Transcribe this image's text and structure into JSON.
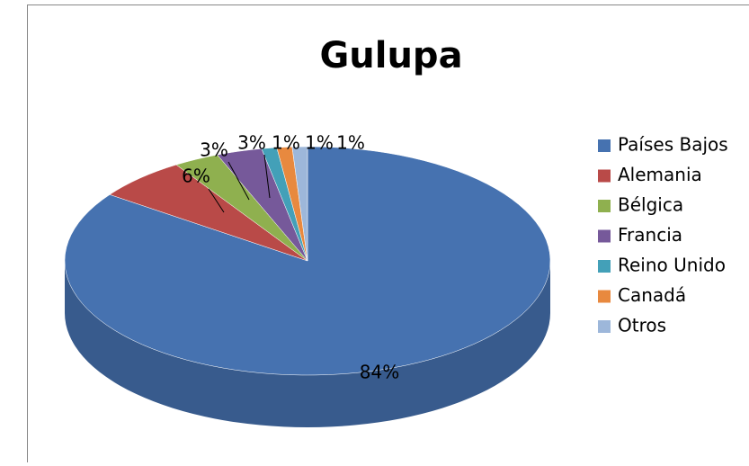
{
  "chart_data": {
    "type": "pie3d",
    "title": "Gulupa",
    "categories": [
      "Países Bajos",
      "Alemania",
      "Bélgica",
      "Francia",
      "Reino Unido",
      "Canadá",
      "Otros"
    ],
    "values": [
      84,
      6,
      3,
      3,
      1,
      1,
      1
    ],
    "value_labels": [
      "84%",
      "6%",
      "3%",
      "3%",
      "1%",
      "1%",
      "1%"
    ],
    "colors": [
      "#4672b0",
      "#b94a48",
      "#8fb04f",
      "#76599a",
      "#43a0b8",
      "#e8893f",
      "#9db7da"
    ],
    "legend": "right"
  }
}
